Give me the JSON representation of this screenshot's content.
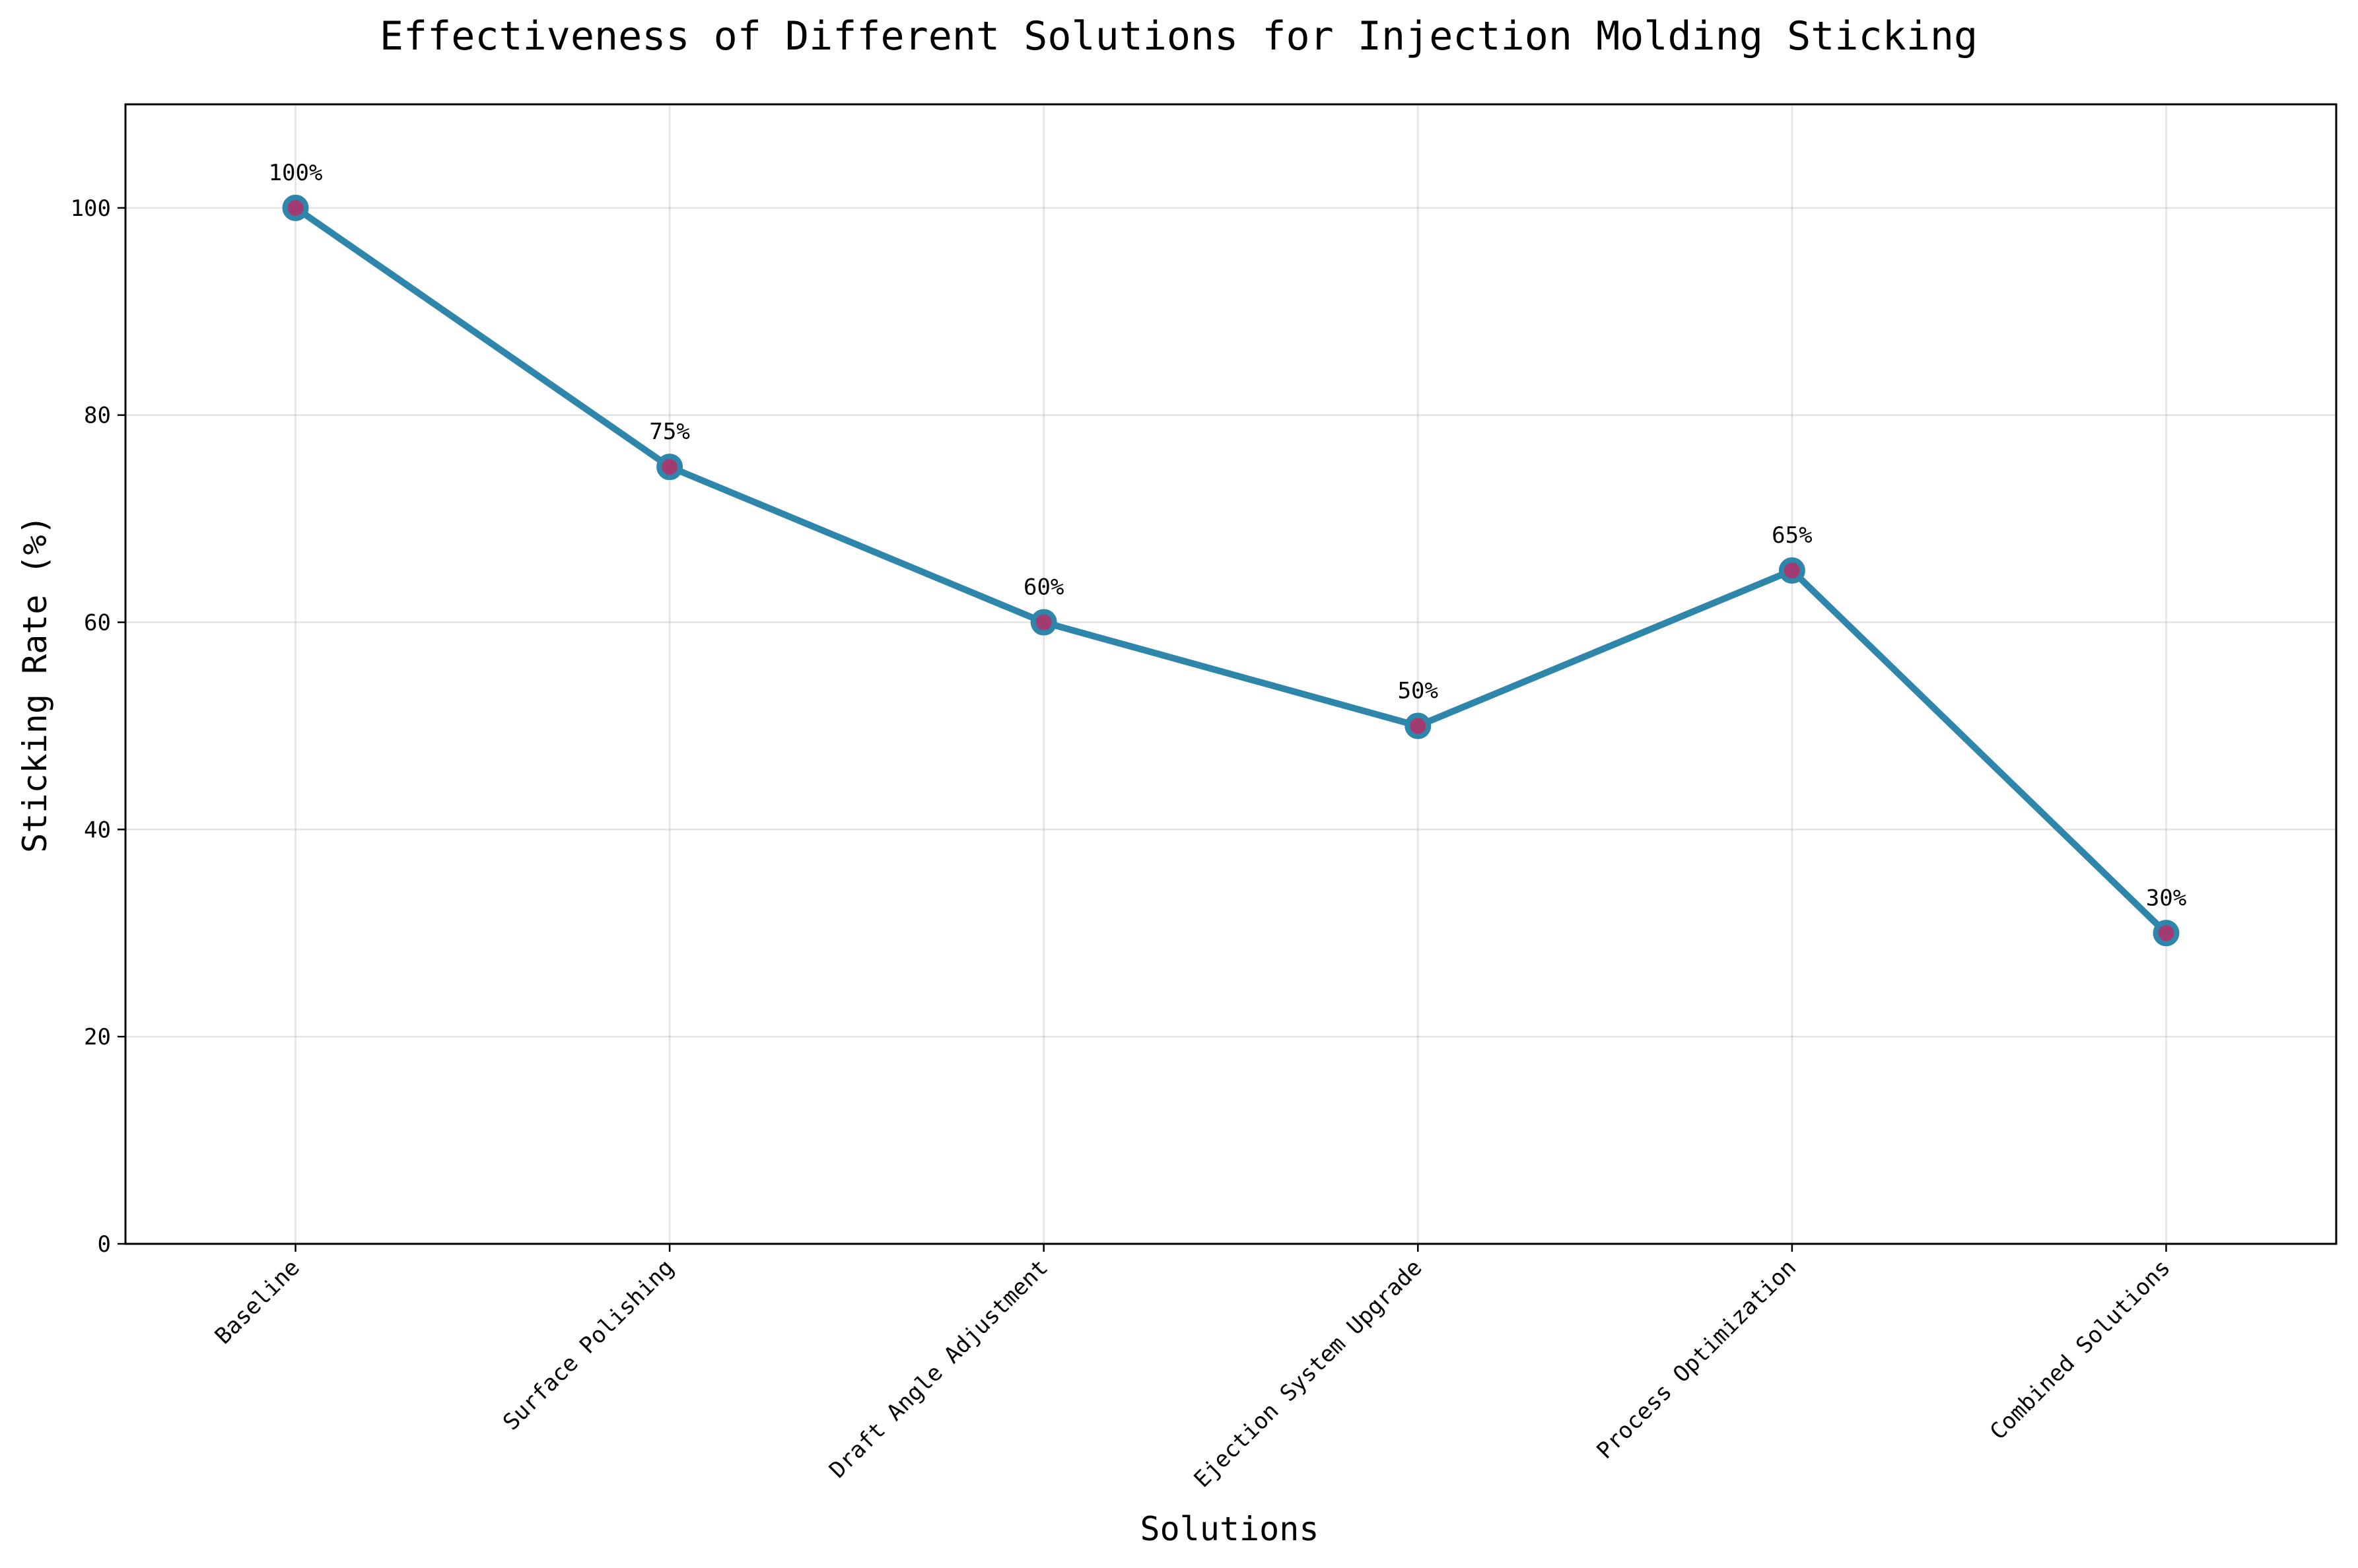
{
  "chart_data": {
    "type": "line",
    "title": "Effectiveness of Different Solutions for Injection Molding Sticking",
    "xlabel": "Solutions",
    "ylabel": "Sticking Rate (%)",
    "categories": [
      "Baseline",
      "Surface Polishing",
      "Draft Angle Adjustment",
      "Ejection System Upgrade",
      "Process Optimization",
      "Combined Solutions"
    ],
    "series": [
      {
        "name": "Sticking Rate",
        "values": [
          100,
          75,
          60,
          50,
          65,
          30
        ],
        "data_labels": [
          "100%",
          "75%",
          "60%",
          "50%",
          "65%",
          "30%"
        ]
      }
    ],
    "ylim": [
      0,
      110
    ],
    "yticks": [
      0,
      20,
      40,
      60,
      80,
      100
    ],
    "grid": true,
    "colors": {
      "line": "#2E86AB",
      "marker_face": "#A23B72",
      "marker_edge": "#2E86AB"
    }
  }
}
